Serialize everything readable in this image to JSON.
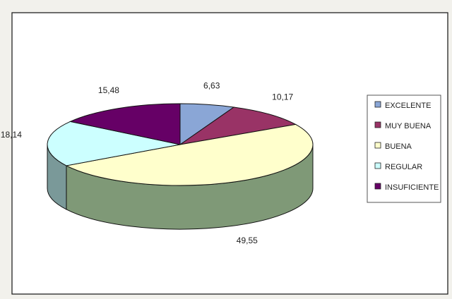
{
  "chart_data": {
    "type": "pie",
    "categories": [
      "EXCELENTE",
      "MUY BUENA",
      "BUENA",
      "REGULAR",
      "INSUFICIENTE"
    ],
    "values": [
      6.63,
      10.17,
      49.55,
      18.14,
      15.48
    ],
    "value_labels": [
      "6,63",
      "10,17",
      "49,55",
      "18,14",
      "15,48"
    ],
    "colors": [
      "#8aa6d6",
      "#993366",
      "#ffffcc",
      "#ccffff",
      "#660066"
    ],
    "three_d": true,
    "legend_position": "right"
  }
}
